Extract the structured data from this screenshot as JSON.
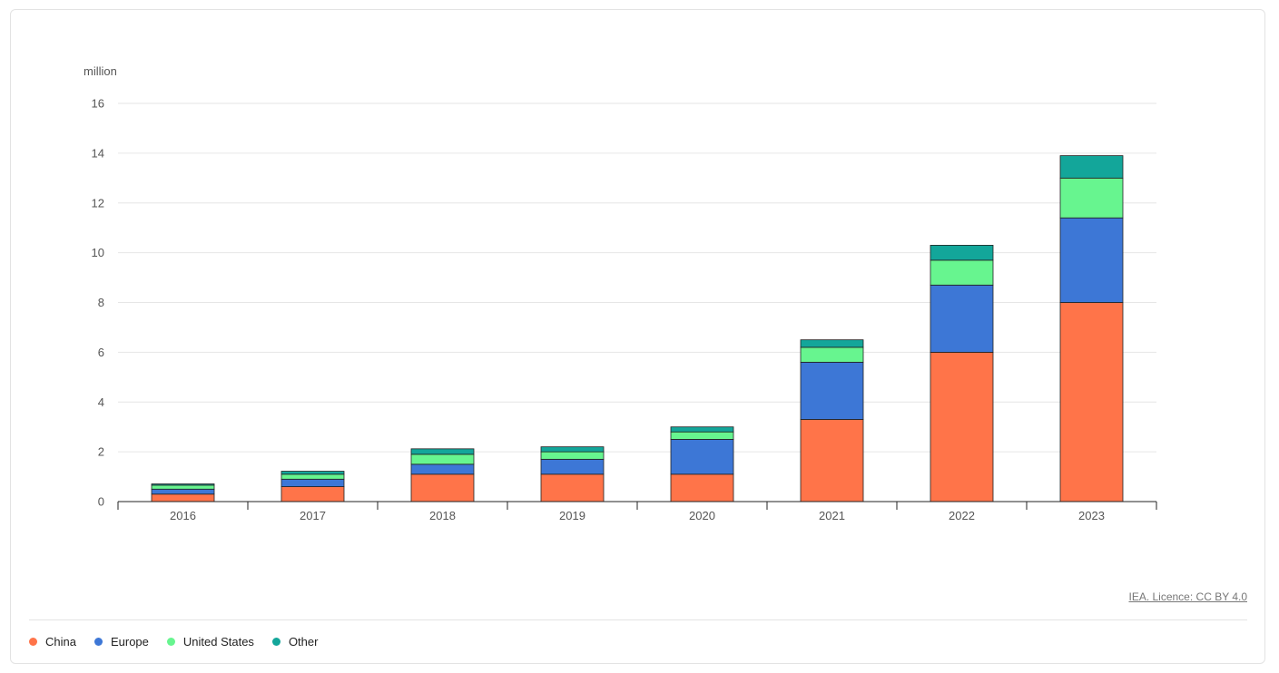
{
  "chart_data": {
    "type": "bar",
    "stacked": true,
    "unit_label": "million",
    "categories": [
      "2016",
      "2017",
      "2018",
      "2019",
      "2020",
      "2021",
      "2022",
      "2023"
    ],
    "series": [
      {
        "name": "China",
        "color": "#ff7449",
        "values": [
          0.3,
          0.6,
          1.1,
          1.1,
          1.1,
          3.3,
          6.0,
          8.0
        ]
      },
      {
        "name": "Europe",
        "color": "#3d77d6",
        "values": [
          0.2,
          0.3,
          0.4,
          0.6,
          1.4,
          2.3,
          2.7,
          3.4
        ]
      },
      {
        "name": "United States",
        "color": "#67f58f",
        "values": [
          0.16,
          0.2,
          0.4,
          0.3,
          0.3,
          0.6,
          1.0,
          1.6
        ]
      },
      {
        "name": "Other",
        "color": "#13a69a",
        "values": [
          0.05,
          0.12,
          0.22,
          0.2,
          0.2,
          0.3,
          0.6,
          0.9
        ]
      }
    ],
    "ylim": [
      0,
      16
    ],
    "yticks": [
      0,
      2,
      4,
      6,
      8,
      10,
      12,
      14,
      16
    ],
    "grid": true,
    "legend_position": "bottom-left"
  },
  "source": {
    "licence_text": "IEA. Licence: CC BY 4.0"
  }
}
